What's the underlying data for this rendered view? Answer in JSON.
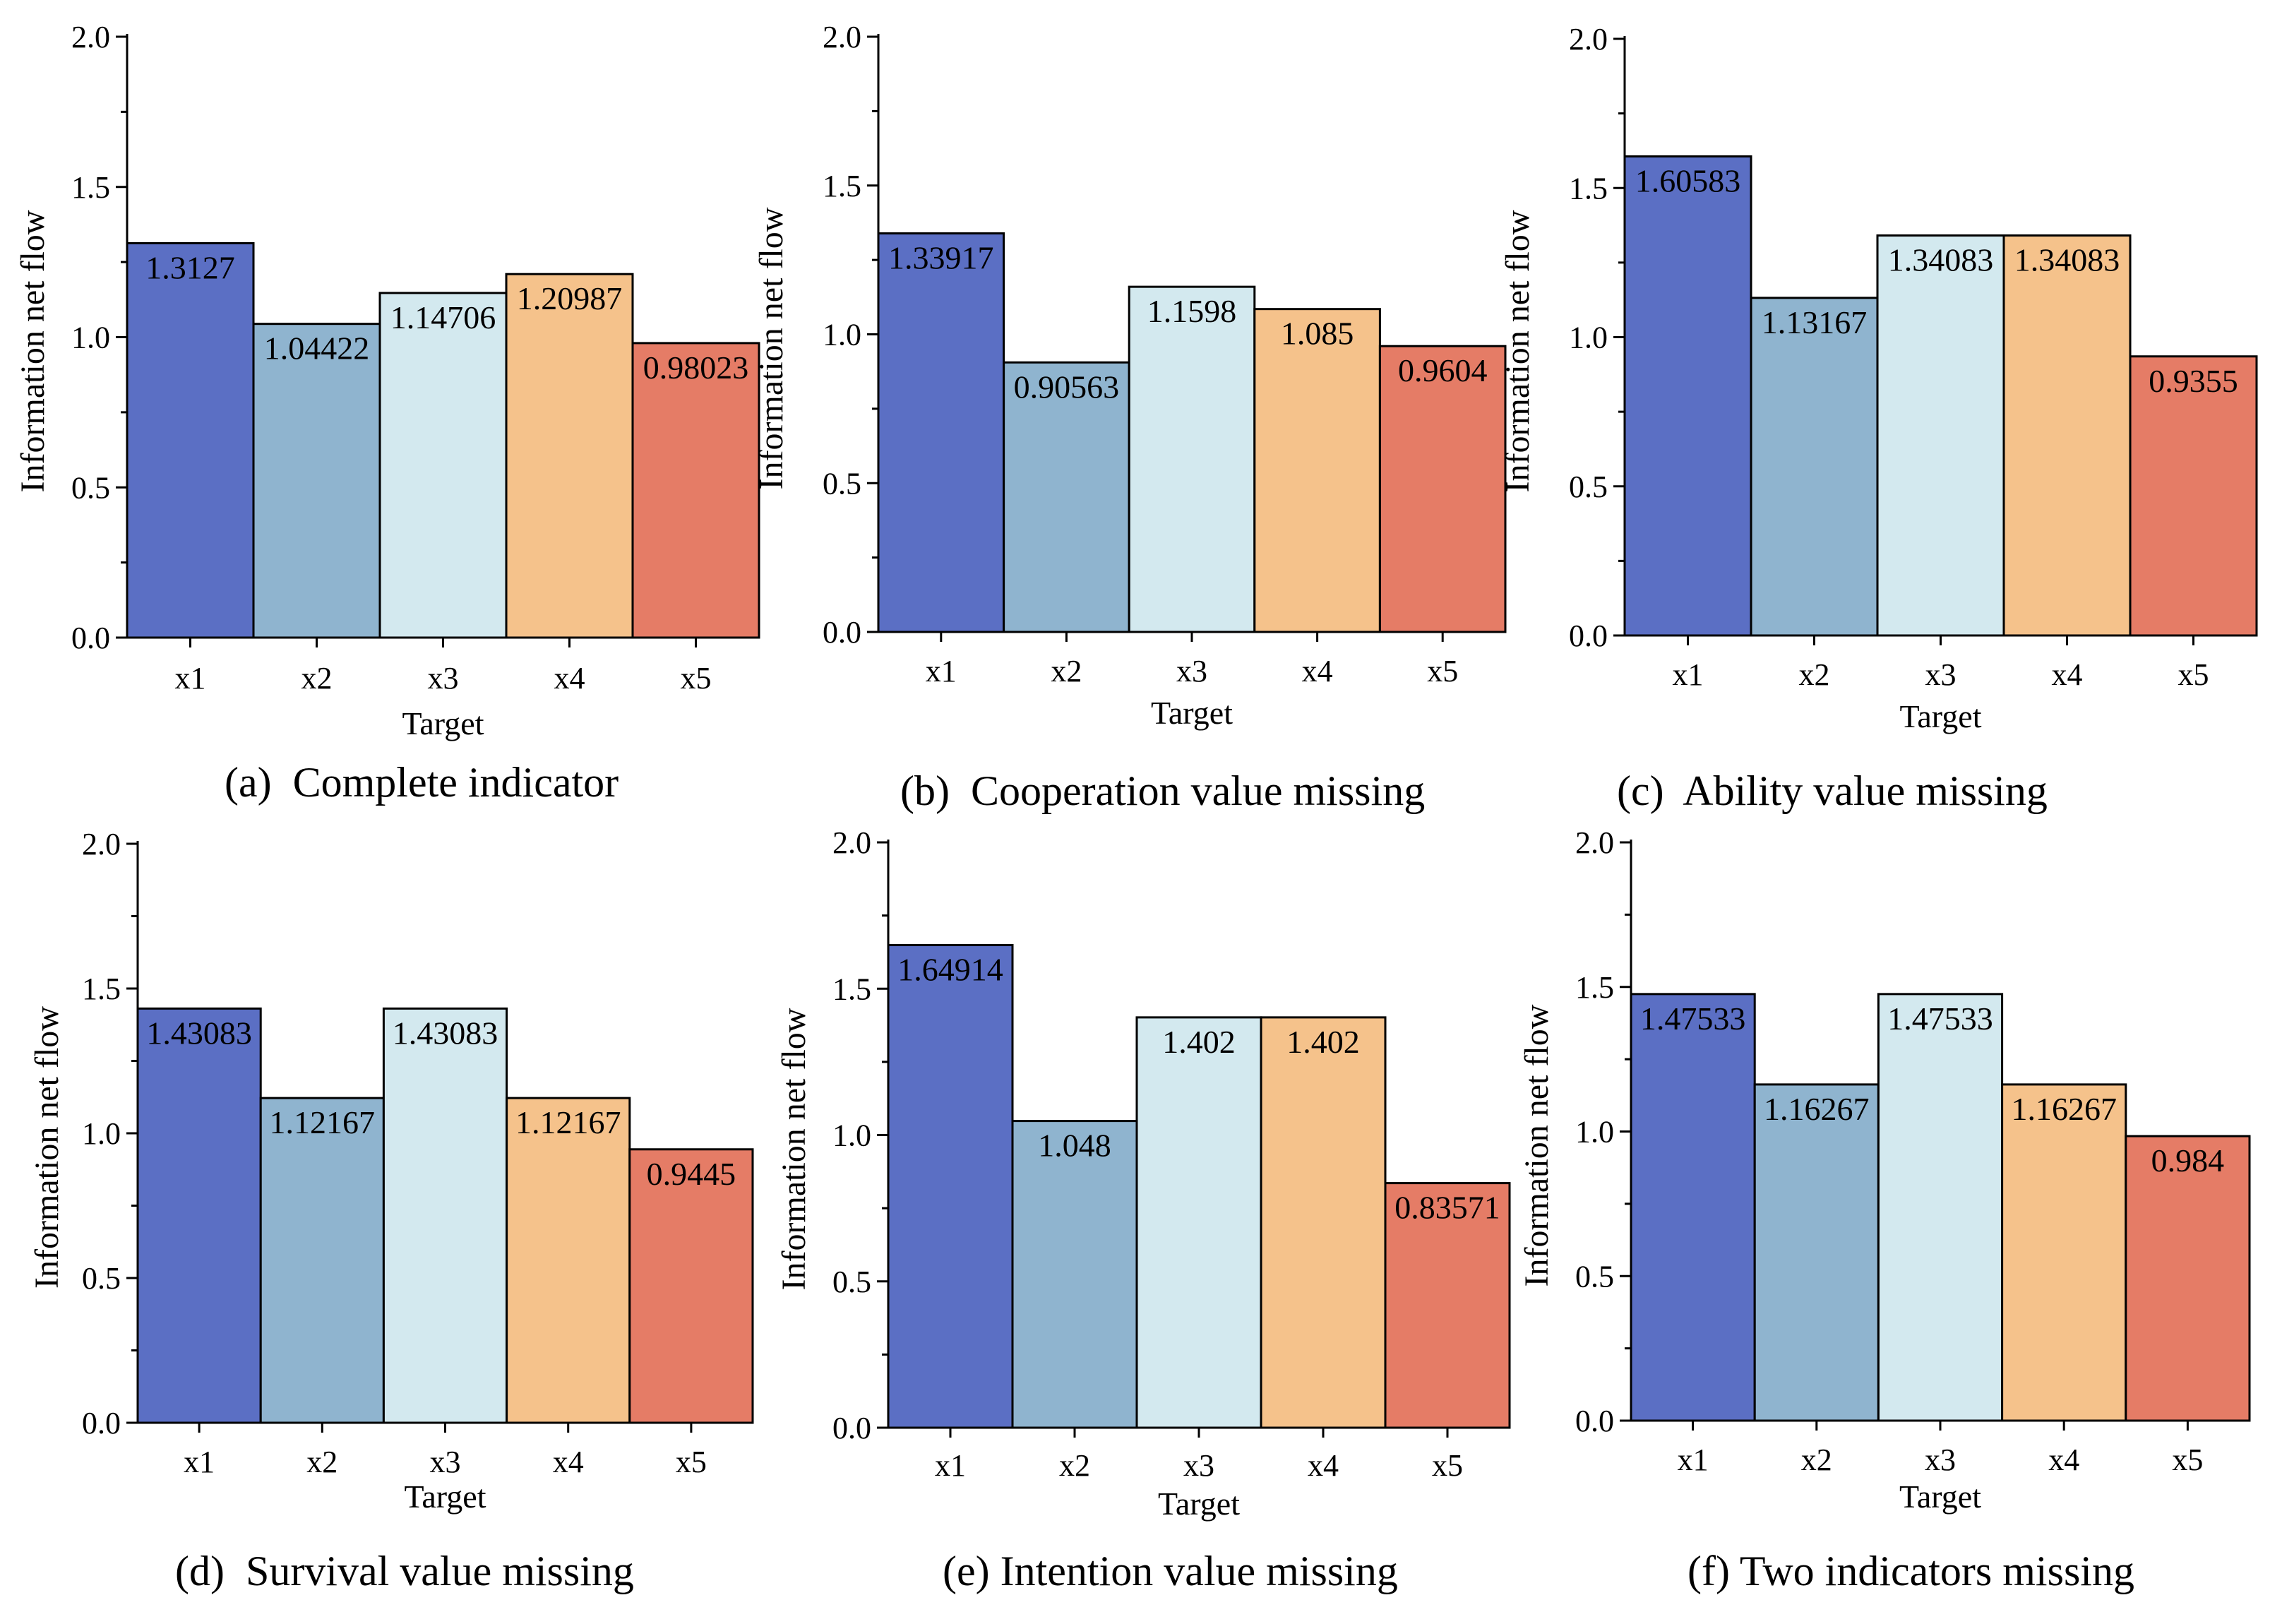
{
  "figure": {
    "colors": [
      "#5b6fc4",
      "#8fb4cf",
      "#d3e9ef",
      "#f5c28b",
      "#e57c66"
    ],
    "axis_color": "#000000"
  },
  "chart_data": [
    {
      "type": "bar",
      "panel": "a",
      "caption": "(a)  Complete indicator",
      "categories": [
        "x1",
        "x2",
        "x3",
        "x4",
        "x5"
      ],
      "values": [
        1.3127,
        1.04422,
        1.14706,
        1.20987,
        0.98023
      ],
      "value_labels": [
        "1.3127",
        "1.04422",
        "1.14706",
        "1.20987",
        "0.98023"
      ],
      "xlabel": "Target",
      "ylabel": "Information net flow",
      "ylim": [
        0,
        2.0
      ],
      "yticks": [
        "0.0",
        "0.5",
        "1.0",
        "1.5",
        "2.0"
      ],
      "grid": false
    },
    {
      "type": "bar",
      "panel": "b",
      "caption": "(b)  Cooperation value missing",
      "categories": [
        "x1",
        "x2",
        "x3",
        "x4",
        "x5"
      ],
      "values": [
        1.33917,
        0.90563,
        1.1598,
        1.085,
        0.9604
      ],
      "value_labels": [
        "1.33917",
        "0.90563",
        "1.1598",
        "1.085",
        "0.9604"
      ],
      "xlabel": "Target",
      "ylabel": "Information net flow",
      "ylim": [
        0,
        2.0
      ],
      "yticks": [
        "0.0",
        "0.5",
        "1.0",
        "1.5",
        "2.0"
      ],
      "grid": false
    },
    {
      "type": "bar",
      "panel": "c",
      "caption": "(c)  Ability value missing",
      "categories": [
        "x1",
        "x2",
        "x3",
        "x4",
        "x5"
      ],
      "values": [
        1.60583,
        1.13167,
        1.34083,
        1.34083,
        0.9355
      ],
      "value_labels": [
        "1.60583",
        "1.13167",
        "1.34083",
        "1.34083",
        "0.9355"
      ],
      "xlabel": "Target",
      "ylabel": "Information net flow",
      "ylim": [
        0,
        2.0
      ],
      "yticks": [
        "0.0",
        "0.5",
        "1.0",
        "1.5",
        "2.0"
      ],
      "grid": false
    },
    {
      "type": "bar",
      "panel": "d",
      "caption": "(d)  Survival value missing",
      "categories": [
        "x1",
        "x2",
        "x3",
        "x4",
        "x5"
      ],
      "values": [
        1.43083,
        1.12167,
        1.43083,
        1.12167,
        0.9445
      ],
      "value_labels": [
        "1.43083",
        "1.12167",
        "1.43083",
        "1.12167",
        "0.9445"
      ],
      "xlabel": "Target",
      "ylabel": "Information net flow",
      "ylim": [
        0,
        2.0
      ],
      "yticks": [
        "0.0",
        "0.5",
        "1.0",
        "1.5",
        "2.0"
      ],
      "grid": false
    },
    {
      "type": "bar",
      "panel": "e",
      "caption": "(e) Intention value missing",
      "categories": [
        "x1",
        "x2",
        "x3",
        "x4",
        "x5"
      ],
      "values": [
        1.64914,
        1.048,
        1.402,
        1.402,
        0.83571
      ],
      "value_labels": [
        "1.64914",
        "1.048",
        "1.402",
        "1.402",
        "0.83571"
      ],
      "xlabel": "Target",
      "ylabel": "Information net flow",
      "ylim": [
        0,
        2.0
      ],
      "yticks": [
        "0.0",
        "0.5",
        "1.0",
        "1.5",
        "2.0"
      ],
      "grid": false
    },
    {
      "type": "bar",
      "panel": "f",
      "caption": "(f) Two indicators missing",
      "categories": [
        "x1",
        "x2",
        "x3",
        "x4",
        "x5"
      ],
      "values": [
        1.47533,
        1.16267,
        1.47533,
        1.16267,
        0.984
      ],
      "value_labels": [
        "1.47533",
        "1.16267",
        "1.47533",
        "1.16267",
        "0.984"
      ],
      "xlabel": "Target",
      "ylabel": "Information net flow",
      "ylim": [
        0,
        2.0
      ],
      "yticks": [
        "0.0",
        "0.5",
        "1.0",
        "1.5",
        "2.0"
      ],
      "grid": false
    }
  ]
}
